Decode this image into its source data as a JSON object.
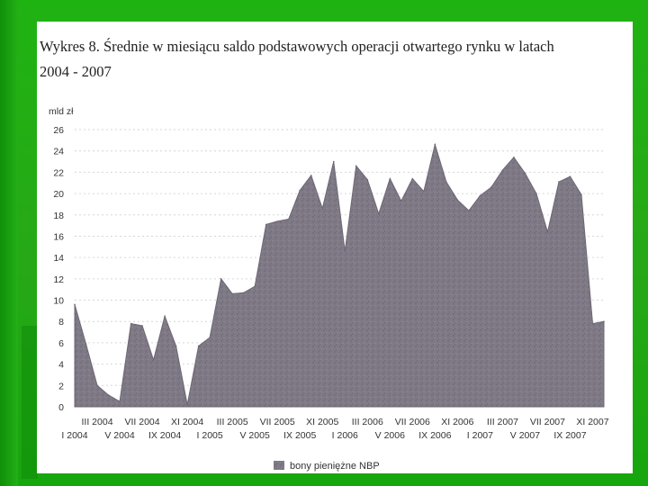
{
  "figure": {
    "title_line1": "Wykres 8. Średnie w miesiącu saldo podstawowych operacji otwartego rynku w latach",
    "title_line2": "2004 - 2007",
    "unit": "mld zł"
  },
  "chart_data": {
    "type": "area",
    "title": "Wykres 8. Średnie w miesiącu saldo podstawowych operacji otwartego rynku w latach 2004 - 2007",
    "ylabel": "mld zł",
    "xlabel": "",
    "ylim": [
      0,
      26
    ],
    "y_ticks": [
      0,
      2,
      4,
      6,
      8,
      10,
      12,
      14,
      16,
      18,
      20,
      22,
      24,
      26
    ],
    "grid": true,
    "legend": "bottom",
    "x_tick_labels_upper": [
      "III 2004",
      "VII 2004",
      "XI 2004",
      "III 2005",
      "VII 2005",
      "XI 2005",
      "III 2006",
      "VII 2006",
      "XI 2006",
      "III 2007",
      "VII 2007",
      "XI 2007"
    ],
    "x_tick_labels_lower": [
      "I 2004",
      "V 2004",
      "IX 2004",
      "I 2005",
      "V 2005",
      "IX 2005",
      "I 2006",
      "V 2006",
      "IX 2006",
      "I 2007",
      "V 2007",
      "IX 2007"
    ],
    "categories": [
      "I 2004",
      "II 2004",
      "III 2004",
      "IV 2004",
      "V 2004",
      "VI 2004",
      "VII 2004",
      "VIII 2004",
      "IX 2004",
      "X 2004",
      "XI 2004",
      "XII 2004",
      "I 2005",
      "II 2005",
      "III 2005",
      "IV 2005",
      "V 2005",
      "VI 2005",
      "VII 2005",
      "VIII 2005",
      "IX 2005",
      "X 2005",
      "XI 2005",
      "XII 2005",
      "I 2006",
      "II 2006",
      "III 2006",
      "IV 2006",
      "V 2006",
      "VI 2006",
      "VII 2006",
      "VIII 2006",
      "IX 2006",
      "X 2006",
      "XI 2006",
      "XII 2006",
      "I 2007",
      "II 2007",
      "III 2007",
      "IV 2007",
      "V 2007",
      "VI 2007",
      "VII 2007",
      "VIII 2007",
      "IX 2007",
      "X 2007",
      "XI 2007",
      "XII 2007"
    ],
    "series": [
      {
        "name": "bony pieniężne NBP",
        "color": "#7f7a85",
        "values": [
          9.6,
          5.9,
          2.0,
          1.1,
          0.5,
          7.8,
          7.6,
          4.4,
          8.5,
          5.7,
          0.2,
          5.7,
          6.5,
          12.0,
          10.6,
          10.7,
          11.3,
          17.1,
          17.4,
          17.6,
          20.3,
          21.7,
          18.6,
          23.0,
          14.6,
          22.6,
          21.3,
          18.1,
          21.4,
          19.3,
          21.4,
          20.2,
          24.6,
          21.1,
          19.4,
          18.4,
          19.8,
          20.6,
          22.2,
          23.4,
          21.9,
          20.0,
          16.4,
          21.1,
          21.6,
          19.9,
          7.8,
          8.0
        ]
      }
    ]
  }
}
